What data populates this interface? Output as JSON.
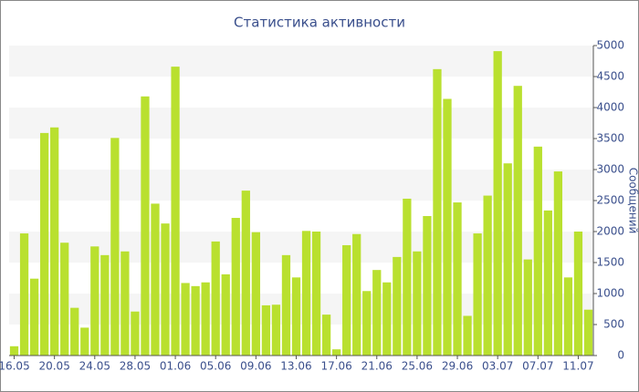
{
  "chart_data": {
    "type": "bar",
    "title": "Статистика активности",
    "y_label": "Сообщений",
    "categories": [
      "16.05",
      null,
      null,
      null,
      "20.05",
      null,
      null,
      null,
      "24.05",
      null,
      null,
      null,
      "28.05",
      null,
      null,
      null,
      "01.06",
      null,
      null,
      null,
      "05.06",
      null,
      null,
      null,
      "09.06",
      null,
      null,
      null,
      "13.06",
      null,
      null,
      null,
      "17.06",
      null,
      null,
      null,
      "21.06",
      null,
      null,
      null,
      "25.06",
      null,
      null,
      null,
      "29.06",
      null,
      null,
      null,
      "03.07",
      null,
      null,
      null,
      "07.07",
      null,
      null,
      null,
      "11.07",
      null
    ],
    "values": [
      150,
      1970,
      1240,
      3590,
      3680,
      1820,
      770,
      450,
      1760,
      1620,
      3510,
      1680,
      710,
      4180,
      2450,
      2130,
      4660,
      1170,
      1120,
      1180,
      1840,
      1310,
      2220,
      2660,
      1990,
      810,
      820,
      1620,
      1260,
      2010,
      2000,
      660,
      100,
      1780,
      1960,
      1040,
      1380,
      1180,
      1590,
      2530,
      1680,
      2250,
      4620,
      4140,
      2470,
      640,
      1970,
      2580,
      4910,
      3100,
      4350,
      1550,
      3370,
      2340,
      2970,
      1260,
      2000,
      740
    ],
    "color": "#b9e02f",
    "ylim": [
      0,
      5000
    ],
    "yticks": [
      0,
      500,
      1000,
      1500,
      2000,
      2500,
      3000,
      3500,
      4000,
      4500,
      5000
    ],
    "grid": true
  }
}
